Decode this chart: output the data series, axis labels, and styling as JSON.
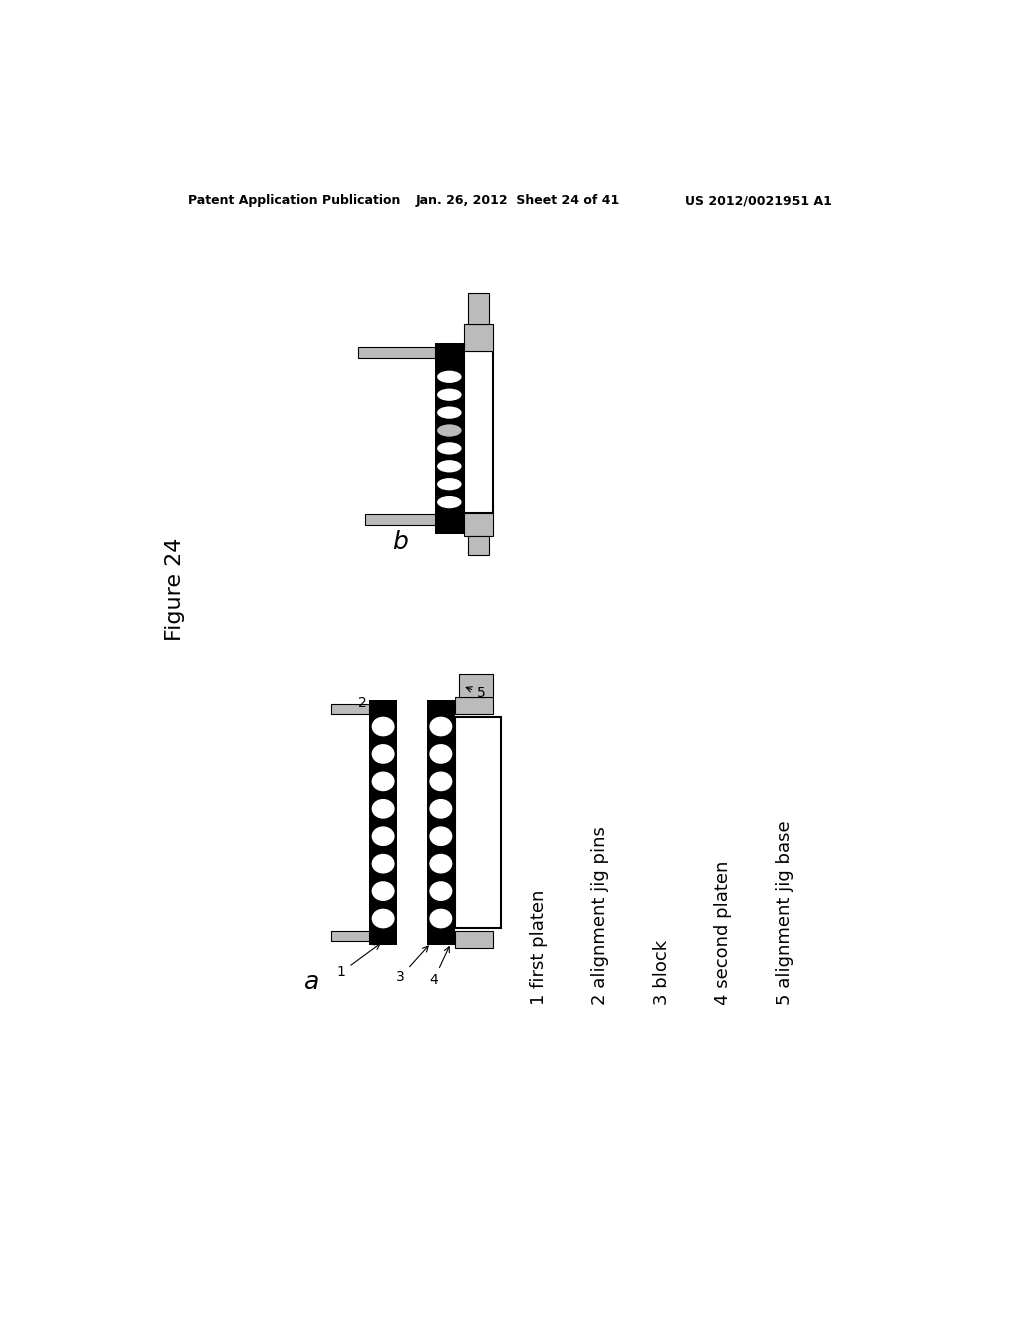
{
  "bg_color": "#ffffff",
  "header_left": "Patent Application Publication",
  "header_mid": "Jan. 26, 2012  Sheet 24 of 41",
  "header_right": "US 2012/0021951 A1",
  "figure_label": "Figure 24",
  "label_a": "a",
  "label_b": "b",
  "legend": [
    [
      "1",
      "first platen"
    ],
    [
      "2",
      "alignment jig pins"
    ],
    [
      "3",
      "block"
    ],
    [
      "4",
      "second platen"
    ],
    [
      "5",
      "alignment jig base"
    ]
  ],
  "black": "#000000",
  "white": "#ffffff",
  "gray": "#999999",
  "lightgray": "#bbbbbb"
}
